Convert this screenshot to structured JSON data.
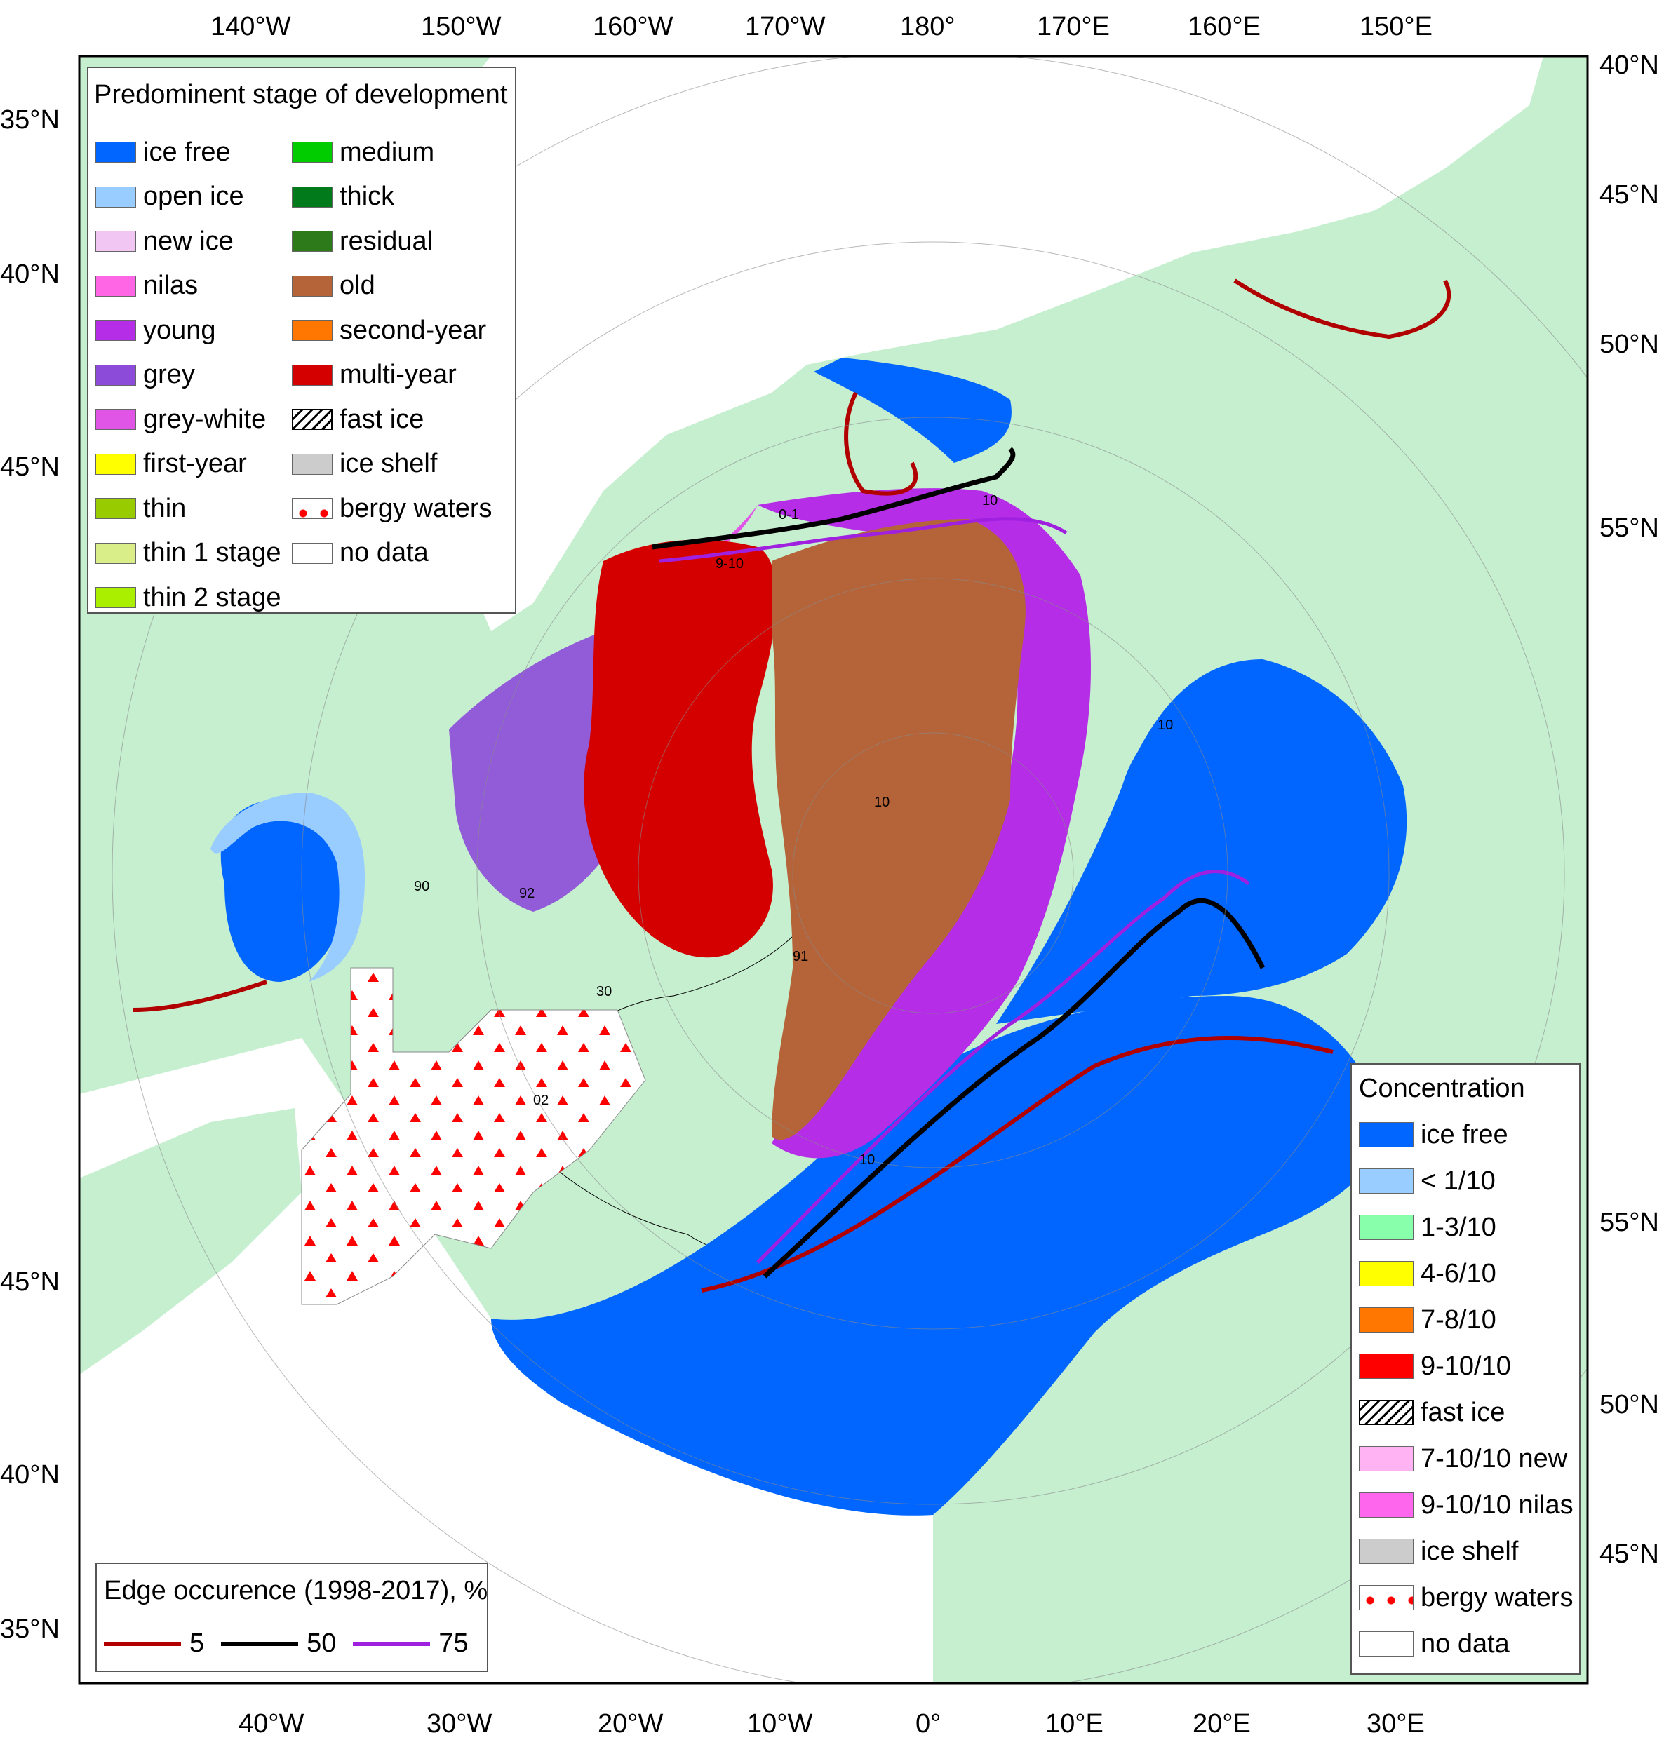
{
  "map": {
    "graticule_labels": {
      "top": [
        "140°W",
        "150°W",
        "160°W",
        "170°W",
        "180°",
        "170°E",
        "160°E",
        "150°E"
      ],
      "bottom": [
        "40°W",
        "30°W",
        "20°W",
        "10°W",
        "0°",
        "10°E",
        "20°E",
        "30°E"
      ],
      "left": [
        "35°N",
        "40°N",
        "45°N",
        "45°N",
        "40°N",
        "35°N"
      ],
      "right": [
        "40°N",
        "45°N",
        "50°N",
        "55°N",
        "55°N",
        "50°N",
        "45°N"
      ]
    },
    "ice_labels": [
      "10",
      "9-10",
      "0-1",
      "10",
      "91",
      "92",
      "90",
      "30",
      "02",
      "10",
      "10"
    ],
    "colors": {
      "land": "#c6efd0",
      "ice_free": "#0066ff",
      "open_ice": "#99ccff",
      "old": "#b5643a",
      "young": "#b52de6",
      "multi_year": "#d40000",
      "grey": "#8c4bd9",
      "grey_white": "#e055e6"
    }
  },
  "legend_stage": {
    "title": "Predominent stage of development",
    "items": [
      {
        "label": "ice free",
        "color": "#0066ff"
      },
      {
        "label": "open ice",
        "color": "#99ccff"
      },
      {
        "label": "new ice",
        "color": "#f2c6f2"
      },
      {
        "label": "nilas",
        "color": "#ff66e6"
      },
      {
        "label": "young",
        "color": "#b52de6"
      },
      {
        "label": "grey",
        "color": "#8c4bd9"
      },
      {
        "label": "grey-white",
        "color": "#e055e6"
      },
      {
        "label": "first-year",
        "color": "#ffff00"
      },
      {
        "label": "thin",
        "color": "#99cc00"
      },
      {
        "label": "thin 1 stage",
        "color": "#d9ee88"
      },
      {
        "label": "thin 2 stage",
        "color": "#aaee00"
      },
      {
        "label": "medium",
        "color": "#00cc00"
      },
      {
        "label": "thick",
        "color": "#007a1a"
      },
      {
        "label": "residual",
        "color": "#2d7a1a"
      },
      {
        "label": "old",
        "color": "#b5643a"
      },
      {
        "label": "second-year",
        "color": "#ff7700"
      },
      {
        "label": "multi-year",
        "color": "#d40000"
      },
      {
        "label": "fast ice",
        "color": "hatch"
      },
      {
        "label": "ice shelf",
        "color": "#cccccc"
      },
      {
        "label": "bergy waters",
        "color": "berg"
      },
      {
        "label": "no data",
        "color": "#ffffff"
      }
    ]
  },
  "legend_concentration": {
    "title": "Concentration",
    "items": [
      {
        "label": "ice free",
        "color": "#0066ff"
      },
      {
        "label": "< 1/10",
        "color": "#99ccff"
      },
      {
        "label": "1-3/10",
        "color": "#88ffaa"
      },
      {
        "label": "4-6/10",
        "color": "#ffff00"
      },
      {
        "label": "7-8/10",
        "color": "#ff7700"
      },
      {
        "label": "9-10/10",
        "color": "#ff0000"
      },
      {
        "label": "fast ice",
        "color": "hatch"
      },
      {
        "label": "7-10/10 new",
        "color": "#ffb3f2"
      },
      {
        "label": "9-10/10 nilas",
        "color": "#ff66ee"
      },
      {
        "label": "ice shelf",
        "color": "#cccccc"
      },
      {
        "label": "bergy waters",
        "color": "berg"
      },
      {
        "label": "no data",
        "color": "#ffffff"
      }
    ]
  },
  "legend_edge": {
    "title": "Edge occurence (1998-2017), %",
    "items": [
      {
        "label": "5",
        "color": "#b00000"
      },
      {
        "label": "50",
        "color": "#000000"
      },
      {
        "label": "75",
        "color": "#a020e0"
      }
    ]
  }
}
